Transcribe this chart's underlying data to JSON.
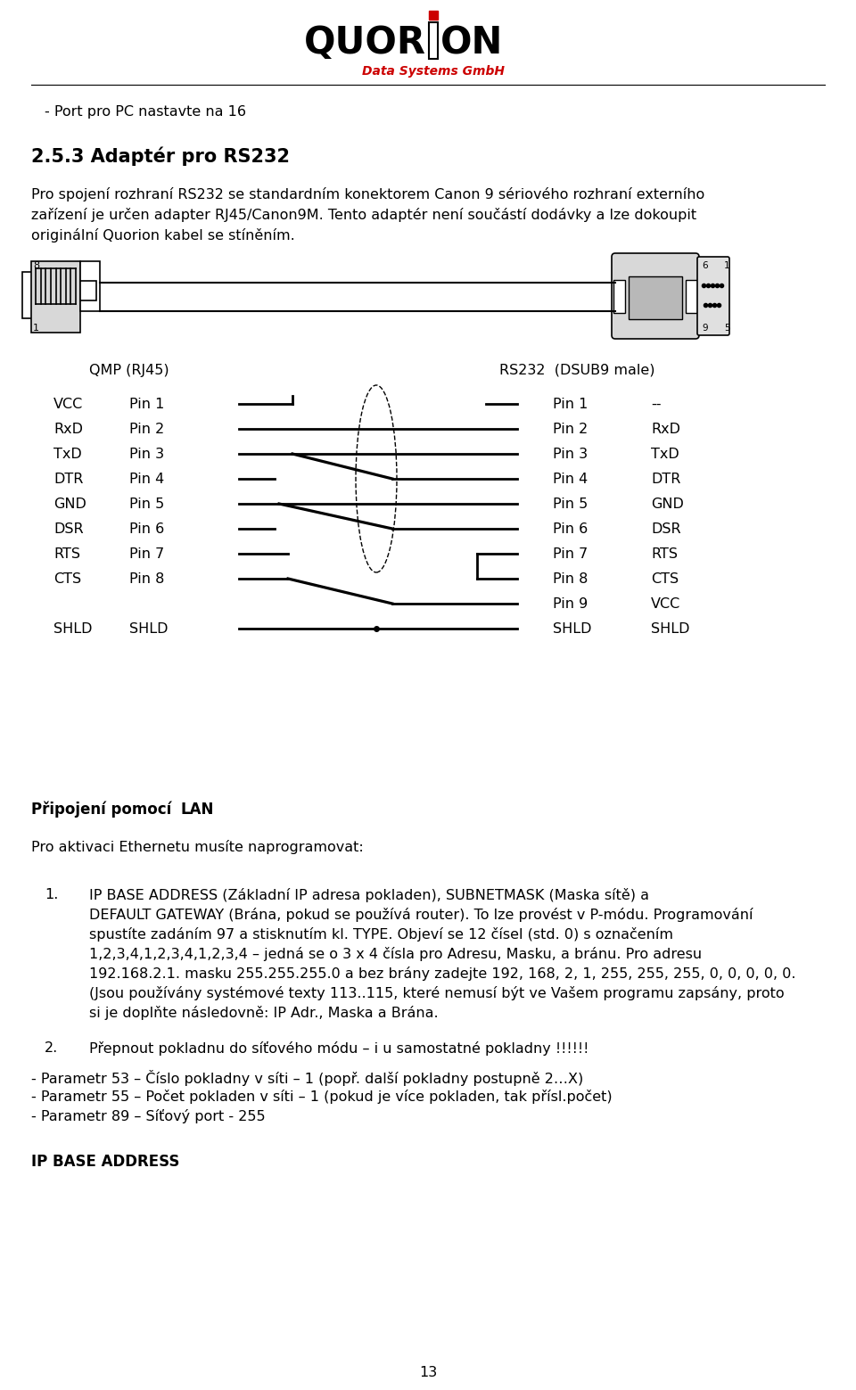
{
  "bg_color": "#ffffff",
  "logo_text_sub": "Data Systems GmbH",
  "line1": "- Port pro PC nastavte na 16",
  "section_title": "2.5.3 Adaptér pro RS232",
  "para1_lines": [
    "Pro spojení rozhraní RS232 se standardním konektorem Canon 9 sériového rozhraní externího",
    "zařízení je určen adapter RJ45/Canon9M. Tento adaptér není součástí dodávky a lze dokoupit",
    "originální Quorion kabel se stíněním."
  ],
  "qmp_label": "QMP (RJ45)",
  "rs232_label": "RS232  (DSUB9 male)",
  "left_pins": [
    "VCC",
    "RxD",
    "TxD",
    "DTR",
    "GND",
    "DSR",
    "RTS",
    "CTS",
    "",
    "SHLD"
  ],
  "left_pin_nums": [
    "Pin 1",
    "Pin 2",
    "Pin 3",
    "Pin 4",
    "Pin 5",
    "Pin 6",
    "Pin 7",
    "Pin 8",
    "",
    "SHLD"
  ],
  "right_pin_nums": [
    "Pin 1",
    "Pin 2",
    "Pin 3",
    "Pin 4",
    "Pin 5",
    "Pin 6",
    "Pin 7",
    "Pin 8",
    "Pin 9",
    "SHLD"
  ],
  "right_labels": [
    "--",
    "RxD",
    "TxD",
    "DTR",
    "GND",
    "DSR",
    "RTS",
    "CTS",
    "VCC",
    "SHLD"
  ],
  "section2_bold": "LAN",
  "section2_normal": "Připojení pomocí ",
  "para2": "Pro aktivaci Ethernetu musíte naprogramovat:",
  "para3_num": "1.",
  "para3_lines": [
    "IP BASE ADDRESS (Základní IP adresa pokladen), SUBNETMASK (Maska sítě) a",
    "DEFAULT GATEWAY (Brána, pokud se používá router). To lze provést v P-módu. Programování",
    "spustíte zadáním 97 a stisknutím kl. TYPE. Objeví se 12 čísel (std. 0) s označením",
    "1,2,3,4,1,2,3,4,1,2,3,4 – jedná se o 3 x 4 čísla pro Adresu, Masku, a bránu. Pro adresu",
    "192.168.2.1. masku 255.255.255.0 a bez brány zadejte 192, 168, 2, 1, 255, 255, 255, 0, 0, 0, 0, 0.",
    "(Jsou používány systémové texty 113..115, které nemusí být ve Vašem programu zapsány, proto",
    "si je doplňte následovně: IP Adr., Maska a Brána."
  ],
  "para4_num": "2.",
  "para4_text": "Přepnout pokladnu do síťového módu – i u samostatné pokladny !!!!!!",
  "para5": "- Parametr 53 – Číslo pokladny v síti – 1 (popř. další pokladny postupně 2…X)",
  "para6": "- Parametr 55 – Počet pokladen v síti – 1 (pokud je více pokladen, tak přísl.počet)",
  "para7": "- Parametr 89 – Síťový port - 255",
  "para8": "IP BASE ADDRESS",
  "page_num": "13"
}
